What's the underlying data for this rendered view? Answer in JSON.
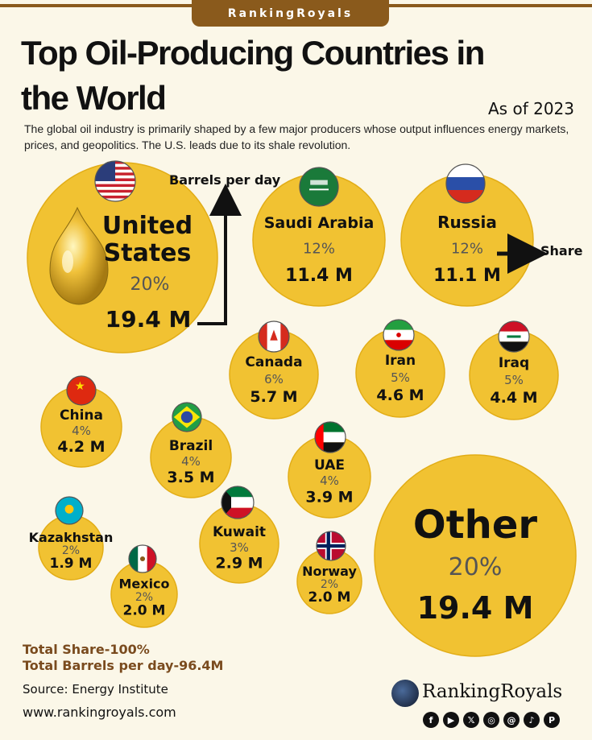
{
  "header": {
    "brand_tab": "RankingRoyals",
    "title": "Top Oil-Producing Countries in the World",
    "as_of": "As of 2023",
    "subtitle": "The global oil industry is primarily shaped by a few major producers whose output influences energy markets, prices, and geopolitics. The U.S. leads due to its shale revolution."
  },
  "annotations": {
    "barrels_label": "Barrels per day",
    "share_label": "Share"
  },
  "colors": {
    "bubble": "#f1c232",
    "bubble_edge": "#e2ad17",
    "background": "#fbf7e8",
    "footer_accent": "#7a4b1e",
    "brand": "#8a5a1c"
  },
  "chart_data": {
    "type": "bubble",
    "value_unit": "M barrels per day",
    "countries": [
      {
        "name": "United States",
        "share_pct": 20,
        "share": "20%",
        "barrels": 19.4,
        "barrels_label": "19.4 M",
        "flag": "us-flag"
      },
      {
        "name": "Saudi Arabia",
        "share_pct": 12,
        "share": "12%",
        "barrels": 11.4,
        "barrels_label": "11.4 M",
        "flag": "saudi-flag"
      },
      {
        "name": "Russia",
        "share_pct": 12,
        "share": "12%",
        "barrels": 11.1,
        "barrels_label": "11.1 M",
        "flag": "russia-flag"
      },
      {
        "name": "Canada",
        "share_pct": 6,
        "share": "6%",
        "barrels": 5.7,
        "barrels_label": "5.7 M",
        "flag": "canada-flag"
      },
      {
        "name": "Iran",
        "share_pct": 5,
        "share": "5%",
        "barrels": 4.6,
        "barrels_label": "4.6 M",
        "flag": "iran-flag"
      },
      {
        "name": "Iraq",
        "share_pct": 5,
        "share": "5%",
        "barrels": 4.4,
        "barrels_label": "4.4 M",
        "flag": "iraq-flag"
      },
      {
        "name": "China",
        "share_pct": 4,
        "share": "4%",
        "barrels": 4.2,
        "barrels_label": "4.2 M",
        "flag": "china-flag"
      },
      {
        "name": "Brazil",
        "share_pct": 4,
        "share": "4%",
        "barrels": 3.5,
        "barrels_label": "3.5 M",
        "flag": "brazil-flag"
      },
      {
        "name": "UAE",
        "share_pct": 4,
        "share": "4%",
        "barrels": 3.9,
        "barrels_label": "3.9 M",
        "flag": "uae-flag"
      },
      {
        "name": "Kazakhstan",
        "share_pct": 2,
        "share": "2%",
        "barrels": 1.9,
        "barrels_label": "1.9 M",
        "flag": "kazakhstan-flag"
      },
      {
        "name": "Kuwait",
        "share_pct": 3,
        "share": "3%",
        "barrels": 2.9,
        "barrels_label": "2.9 M",
        "flag": "kuwait-flag"
      },
      {
        "name": "Mexico",
        "share_pct": 2,
        "share": "2%",
        "barrels": 2.0,
        "barrels_label": "2.0 M",
        "flag": "mexico-flag"
      },
      {
        "name": "Norway",
        "share_pct": 2,
        "share": "2%",
        "barrels": 2.0,
        "barrels_label": "2.0 M",
        "flag": "norway-flag"
      },
      {
        "name": "Other",
        "share_pct": 20,
        "share": "20%",
        "barrels": 19.4,
        "barrels_label": "19.4 M",
        "flag": ""
      }
    ]
  },
  "footer": {
    "total_share": "Total Share-100%",
    "total_barrels": "Total Barrels per day-96.4M",
    "source": "Source: Energy Institute",
    "website": "www.rankingroyals.com",
    "logo_text": "RankingRoyals",
    "social_icons": [
      "facebook-icon",
      "youtube-icon",
      "x-icon",
      "instagram-icon",
      "threads-icon",
      "tiktok-icon",
      "pinterest-icon"
    ]
  }
}
